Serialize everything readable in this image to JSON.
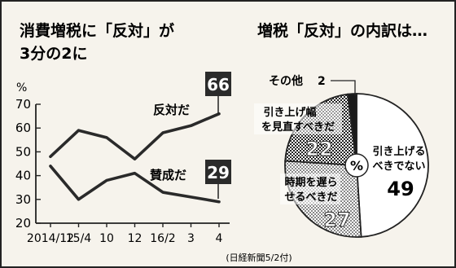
{
  "chart_data": [
    {
      "type": "line",
      "title": "消費増税に「反対」が3分の2に",
      "title_lines": [
        "消費増税に「反対」が",
        "3分の2に"
      ],
      "ylabel": "%",
      "ylim": [
        20,
        70
      ],
      "yticks": [
        "20",
        "30",
        "40",
        "50",
        "60",
        "70"
      ],
      "categories": [
        "2014/12",
        "15/4",
        "10",
        "12",
        "16/2",
        "3",
        "4"
      ],
      "series": [
        {
          "name": "反対だ",
          "values": [
            48,
            59,
            56,
            47,
            58,
            61,
            66
          ],
          "end_label": "66",
          "color": "#2a2a2a"
        },
        {
          "name": "賛成だ",
          "values": [
            44,
            30,
            38,
            41,
            33,
            31,
            29
          ],
          "end_label": "29",
          "color": "#2a2a2a"
        }
      ],
      "grid": false
    },
    {
      "type": "pie",
      "title": "増税「反対」の内訳は…",
      "center_label": "%",
      "slices": [
        {
          "name": "引き上げるべきでない",
          "name_lines": [
            "引き上げる",
            "べきでない"
          ],
          "value": 49,
          "value_label": "49",
          "fill": "white"
        },
        {
          "name": "時期を遅らせるべきだ",
          "name_lines": [
            "時期を遅ら",
            "せるべきだ"
          ],
          "value": 27,
          "value_label": "27",
          "fill": "dots"
        },
        {
          "name": "引き上げ幅を見直すべきだ",
          "name_lines": [
            "引き上げ幅",
            "を見直すべきだ"
          ],
          "value": 22,
          "value_label": "22",
          "fill": "checker"
        },
        {
          "name": "その他",
          "value": 2,
          "value_label": "2",
          "fill": "black"
        }
      ]
    }
  ],
  "source_note": "(日経新聞5/2付)"
}
